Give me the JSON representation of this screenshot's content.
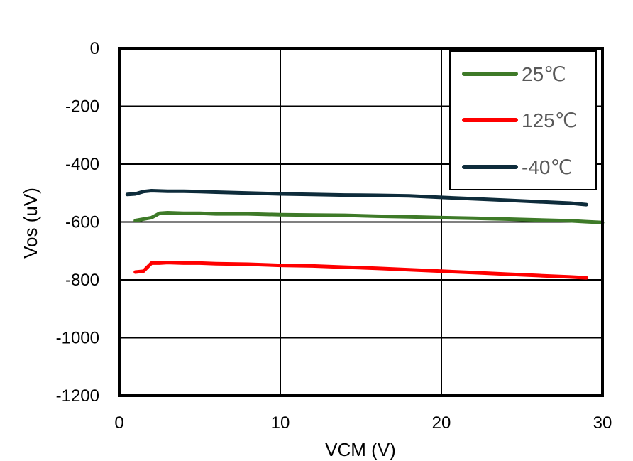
{
  "chart_data": {
    "type": "line",
    "xlabel": "VCM (V)",
    "ylabel": "Vos (uV)",
    "xlim": [
      0,
      30
    ],
    "ylim": [
      -1200,
      0
    ],
    "x_ticks": [
      "0",
      "10",
      "20",
      "30"
    ],
    "y_ticks": [
      "0",
      "-200",
      "-400",
      "-600",
      "-800",
      "-1000",
      "-1200"
    ],
    "grid": true,
    "legend_position": "top-right",
    "series": [
      {
        "name": "25℃",
        "color": "#3e7a28",
        "x": [
          1,
          1.5,
          2,
          2.5,
          3,
          4,
          5,
          6,
          8,
          10,
          12,
          14,
          16,
          18,
          20,
          22,
          24,
          26,
          28,
          29,
          30
        ],
        "y": [
          -595,
          -590,
          -585,
          -570,
          -568,
          -570,
          -570,
          -572,
          -572,
          -575,
          -576,
          -577,
          -580,
          -582,
          -585,
          -587,
          -590,
          -593,
          -596,
          -599,
          -602
        ]
      },
      {
        "name": "125℃",
        "color": "#ff0000",
        "x": [
          1,
          1.5,
          2,
          2.5,
          3,
          4,
          5,
          6,
          8,
          10,
          12,
          14,
          16,
          18,
          20,
          22,
          24,
          26,
          28,
          29
        ],
        "y": [
          -773,
          -770,
          -742,
          -742,
          -740,
          -742,
          -742,
          -744,
          -746,
          -750,
          -752,
          -756,
          -760,
          -765,
          -770,
          -775,
          -780,
          -785,
          -790,
          -793
        ]
      },
      {
        "name": "-40℃",
        "color": "#0e2c3b",
        "x": [
          0.5,
          1,
          1.5,
          2,
          3,
          4,
          5,
          6,
          8,
          10,
          12,
          14,
          16,
          18,
          20,
          22,
          24,
          26,
          28,
          29
        ],
        "y": [
          -505,
          -503,
          -495,
          -492,
          -494,
          -494,
          -495,
          -497,
          -500,
          -503,
          -505,
          -507,
          -508,
          -510,
          -515,
          -520,
          -525,
          -530,
          -535,
          -540
        ]
      }
    ]
  }
}
